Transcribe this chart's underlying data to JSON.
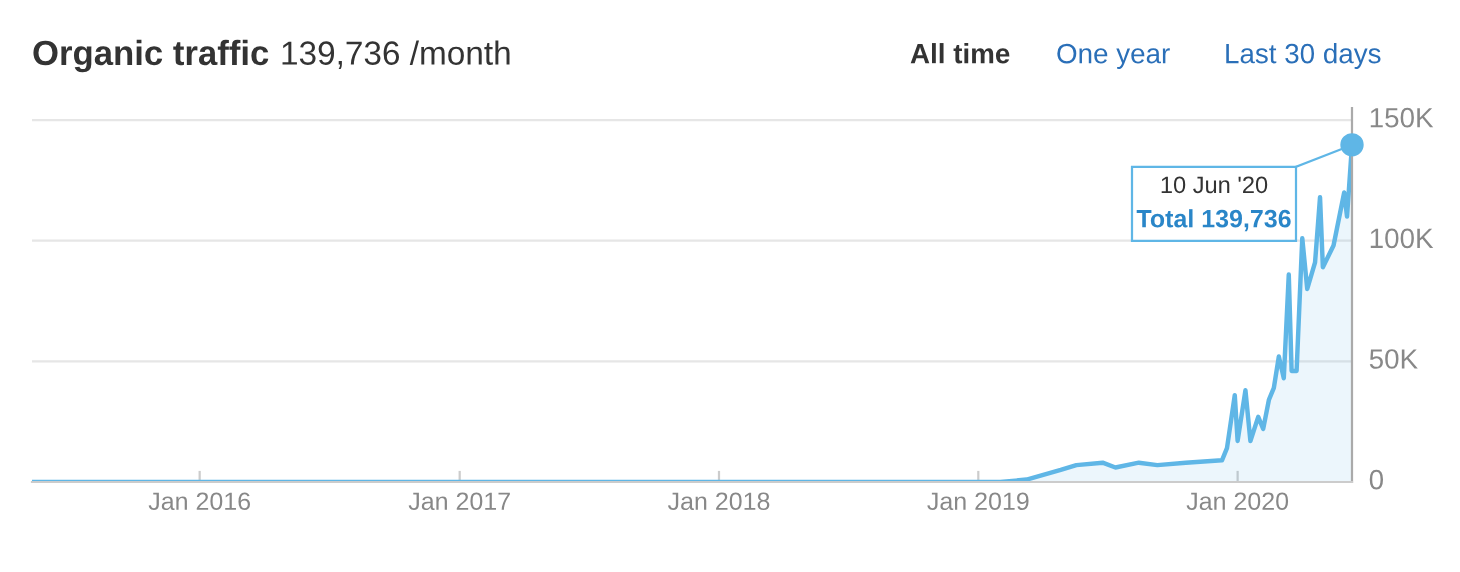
{
  "chart_data": {
    "type": "area",
    "title": "Organic traffic",
    "subtitle": "139,736 /month",
    "annotations": [
      "10 Jun '20",
      "Total 139,736",
      "All time",
      "One year",
      "Last 30 days"
    ],
    "x": [
      "2015-05-10",
      "2016-01-01",
      "2016-06-01",
      "2017-01-01",
      "2017-06-01",
      "2018-01-01",
      "2018-06-01",
      "2019-01-01",
      "2019-02-01",
      "2019-03-10",
      "2019-04-27",
      "2019-05-19",
      "2019-06-25",
      "2019-07-13",
      "2019-08-15",
      "2019-09-10",
      "2019-10-20",
      "2019-12-10",
      "2019-12-17",
      "2019-12-28",
      "2020-01-01",
      "2020-01-12",
      "2020-01-19",
      "2020-01-30",
      "2020-02-06",
      "2020-02-14",
      "2020-02-21",
      "2020-02-28",
      "2020-03-06",
      "2020-03-13",
      "2020-03-17",
      "2020-03-24",
      "2020-04-01",
      "2020-04-08",
      "2020-04-19",
      "2020-04-26",
      "2020-04-30",
      "2020-05-15",
      "2020-05-30",
      "2020-06-03",
      "2020-06-10"
    ],
    "series": [
      {
        "color": "#5fb6e6",
        "values": [
          0,
          0,
          0,
          0,
          0,
          0,
          0,
          0,
          0,
          1000,
          5000,
          7000,
          8000,
          6000,
          8000,
          7000,
          8000,
          9000,
          14000,
          36000,
          17000,
          38000,
          17000,
          27000,
          22000,
          34000,
          39000,
          52000,
          43000,
          86000,
          46000,
          46000,
          101000,
          80000,
          91000,
          118000,
          89000,
          98000,
          120000,
          110000,
          139736
        ]
      },
      {
        "type": "scatter",
        "color": "#5fb6e6",
        "x": [
          "2020-06-10"
        ],
        "values": [
          139736
        ],
        "marker": "circle"
      }
    ],
    "xlim": [
      "2015-05-10",
      "2020-06-10"
    ],
    "xticks": [
      {
        "value": "2016-01-01",
        "label": "Jan 2016"
      },
      {
        "value": "2017-01-01",
        "label": "Jan 2017"
      },
      {
        "value": "2018-01-01",
        "label": "Jan 2018"
      },
      {
        "value": "2019-01-01",
        "label": "Jan 2019"
      },
      {
        "value": "2020-01-01",
        "label": "Jan 2020"
      }
    ],
    "ylim": [
      0,
      155000
    ],
    "yticks": [
      0,
      {
        "value": 50000,
        "label": "50K"
      },
      {
        "value": 100000,
        "label": "100K"
      },
      {
        "value": 150000,
        "label": "150K"
      }
    ],
    "grid": "y",
    "legend": false
  }
}
